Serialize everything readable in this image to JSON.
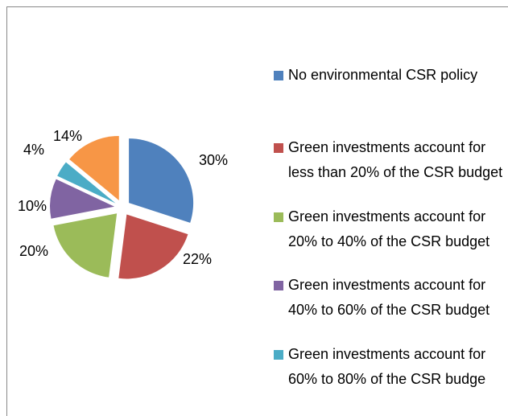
{
  "chart_data": {
    "type": "pie",
    "categories": [
      "No environmental CSR policy",
      "Green investments account for less than 20% of the CSR budget",
      "Green investments account for 20% to 40% of the CSR budget",
      "Green investments account for 40% to 60% of the CSR budget",
      "Green investments account for 60% to 80% of the CSR budge",
      null
    ],
    "values": [
      30,
      22,
      20,
      10,
      4,
      14
    ],
    "value_labels": [
      "30%",
      "22%",
      "20%",
      "10%",
      "4%",
      "14%"
    ],
    "colors": [
      "#4f81bd",
      "#c0504d",
      "#9bbb59",
      "#8064a2",
      "#4bacc6",
      "#f79646"
    ],
    "legend": "right"
  }
}
